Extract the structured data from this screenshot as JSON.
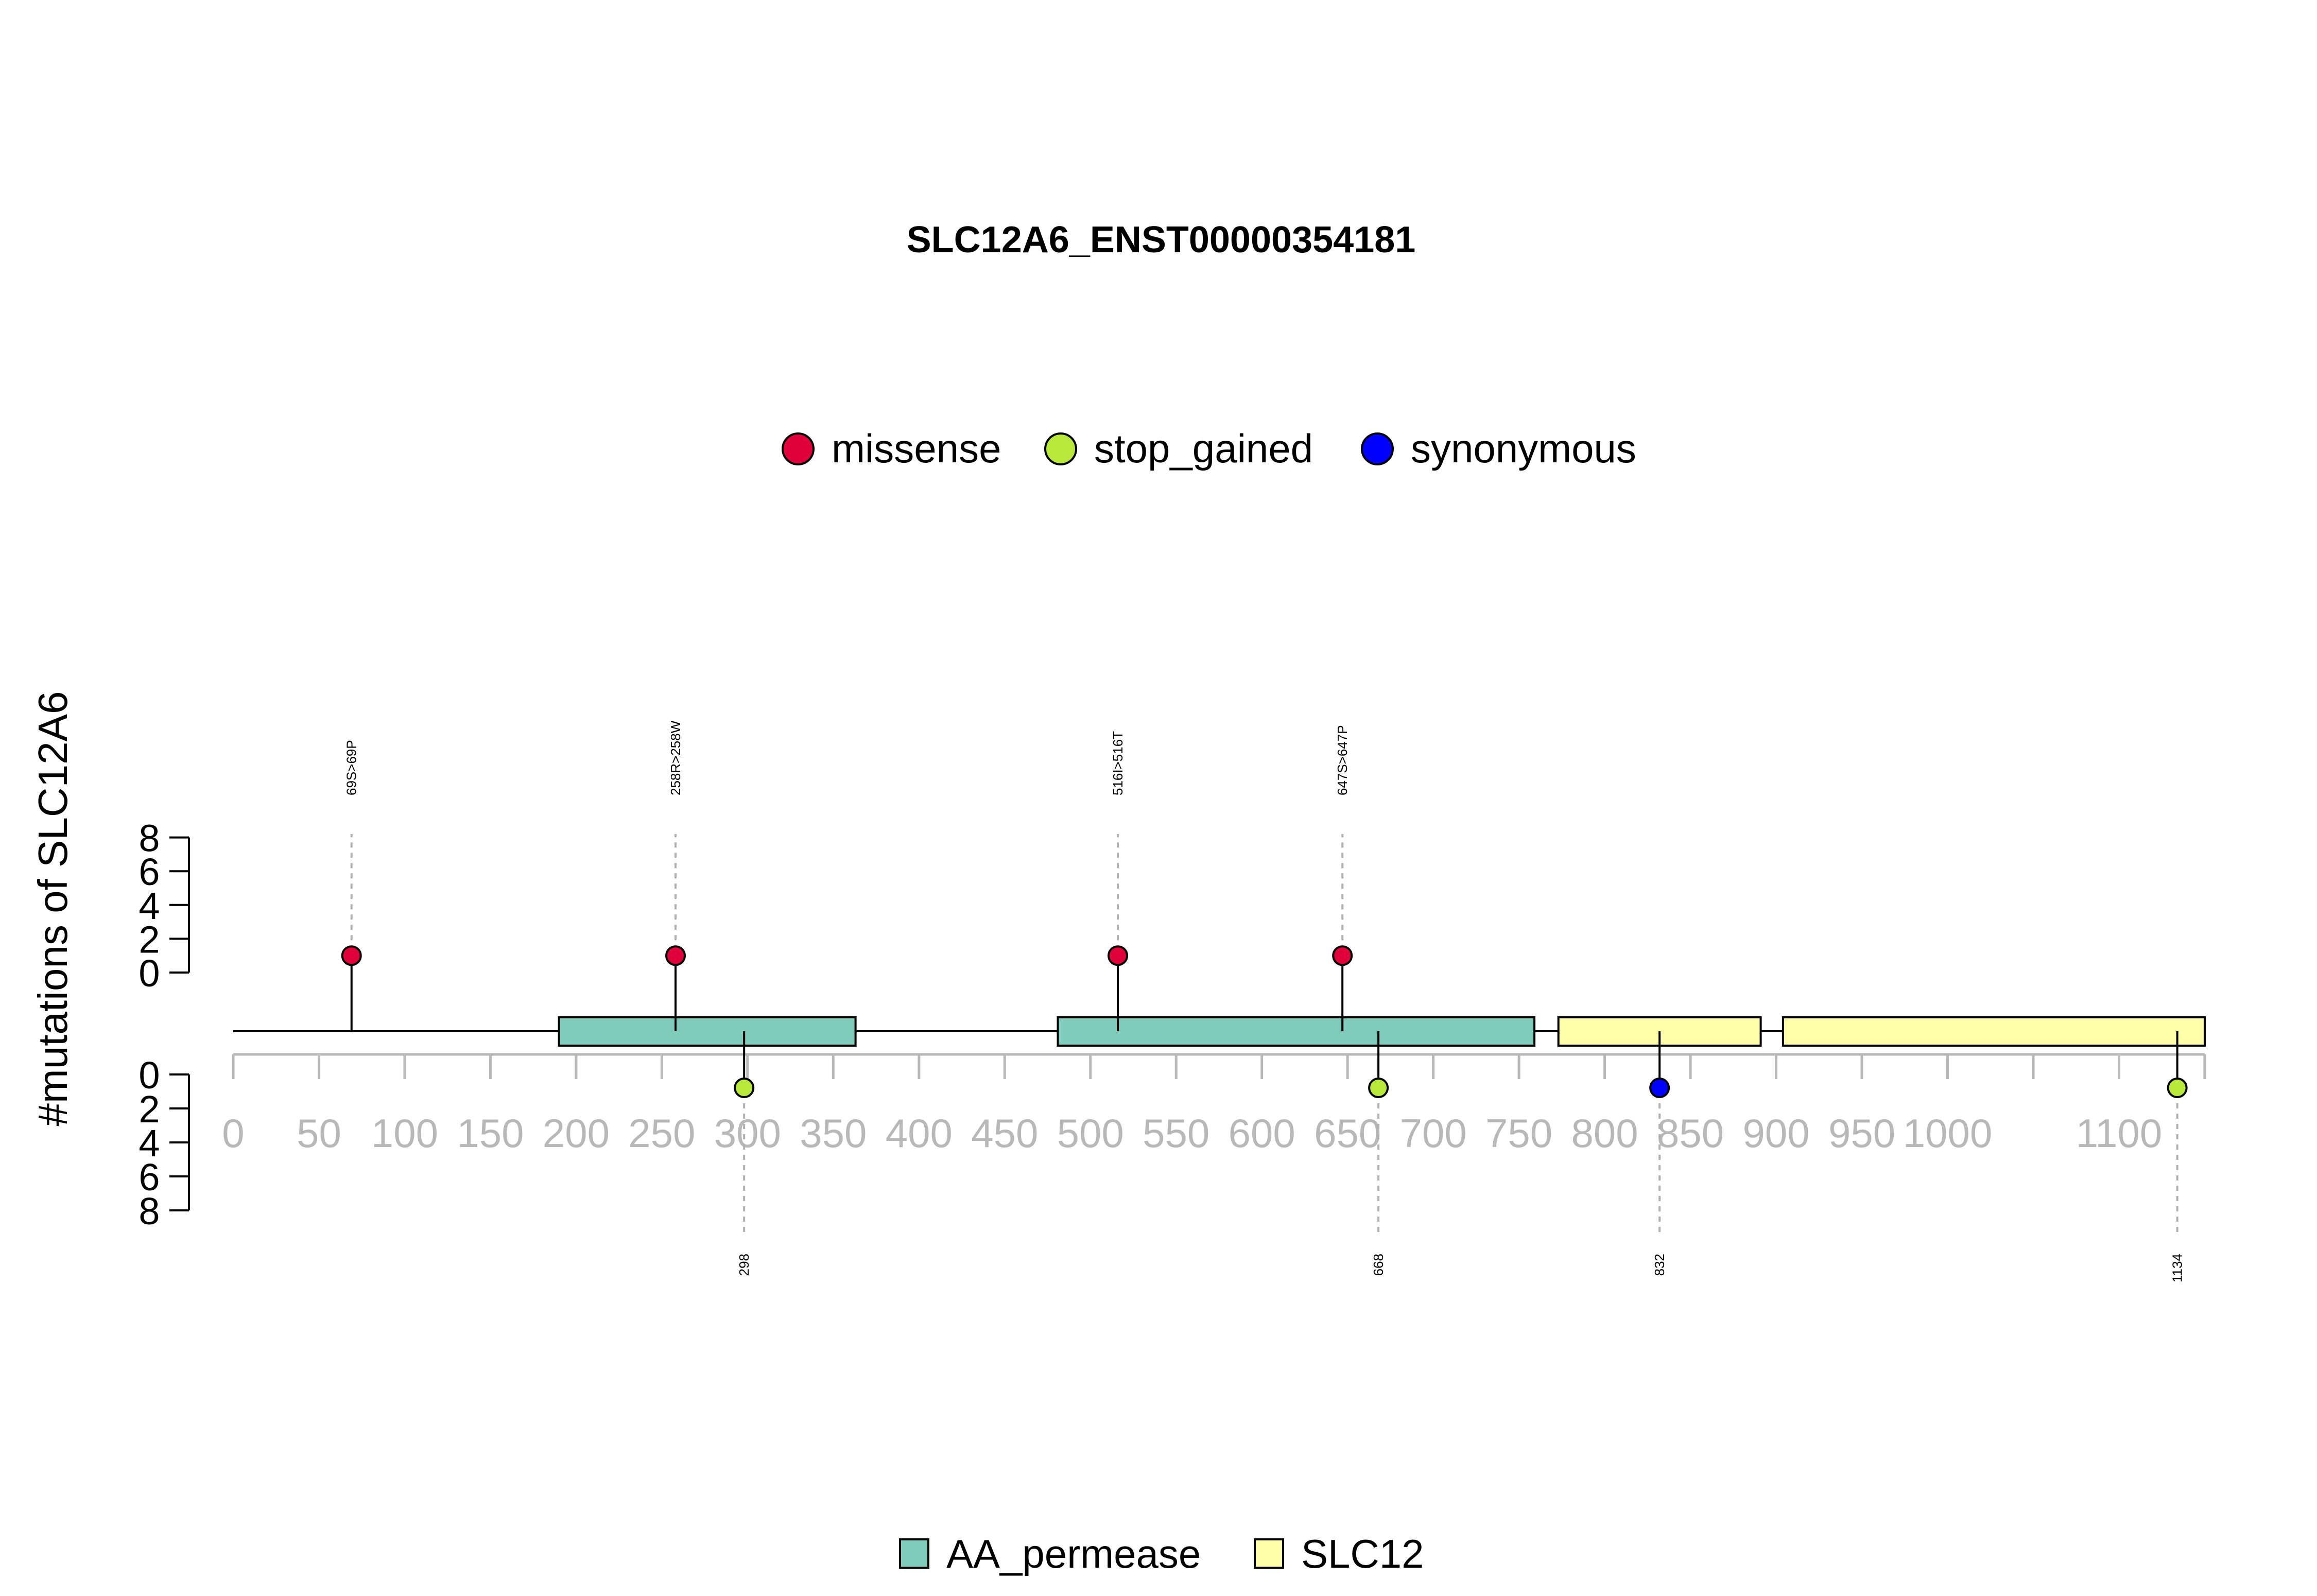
{
  "chart_data": {
    "type": "lollipop",
    "title": "SLC12A6_ENST00000354181",
    "ylabel": "#mutations of SLC12A6",
    "protein_length": 1150,
    "xticks": [
      0,
      50,
      100,
      150,
      200,
      250,
      300,
      350,
      400,
      450,
      500,
      550,
      600,
      650,
      700,
      750,
      800,
      850,
      900,
      950,
      1000,
      1100
    ],
    "yticks": [
      0,
      2,
      4,
      6,
      8
    ],
    "mutation_legend": [
      {
        "name": "missense",
        "color": "#e0003a"
      },
      {
        "name": "stop_gained",
        "color": "#b8e83a"
      },
      {
        "name": "synonymous",
        "color": "#0000ff"
      }
    ],
    "domain_legend": [
      {
        "name": "AA_permease",
        "color": "#7fccba"
      },
      {
        "name": "SLC12",
        "color": "#ffffaa"
      }
    ],
    "domains": [
      {
        "name": "AA_permease",
        "start": 190,
        "end": 363
      },
      {
        "name": "AA_permease",
        "start": 481,
        "end": 759
      },
      {
        "name": "SLC12",
        "start": 773,
        "end": 891
      },
      {
        "name": "SLC12",
        "start": 904,
        "end": 1150
      }
    ],
    "mutations_top": [
      {
        "label": "69S>69P",
        "position": 69,
        "count": 1,
        "type": "missense"
      },
      {
        "label": "258R>258W",
        "position": 258,
        "count": 1,
        "type": "missense"
      },
      {
        "label": "516I>516T",
        "position": 516,
        "count": 1,
        "type": "missense"
      },
      {
        "label": "647S>647P",
        "position": 647,
        "count": 1,
        "type": "missense"
      }
    ],
    "mutations_bottom": [
      {
        "label": "298",
        "position": 298,
        "count": 1,
        "type": "stop_gained"
      },
      {
        "label": "668",
        "position": 668,
        "count": 1,
        "type": "stop_gained"
      },
      {
        "label": "832",
        "position": 832,
        "count": 1,
        "type": "synonymous"
      },
      {
        "label": "1134",
        "position": 1134,
        "count": 1,
        "type": "stop_gained"
      }
    ]
  }
}
